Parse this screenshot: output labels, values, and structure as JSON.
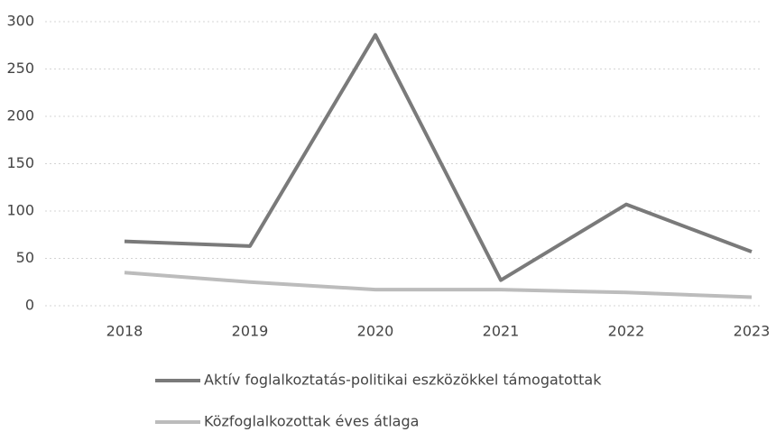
{
  "chart_data": {
    "type": "line",
    "categories": [
      "2018",
      "2019",
      "2020",
      "2021",
      "2022",
      "2023"
    ],
    "series": [
      {
        "name": "Aktív foglalkoztatás-politikai eszközökkel támogatottak",
        "color": "#7a7a7a",
        "values": [
          68,
          63,
          286,
          27,
          107,
          57
        ]
      },
      {
        "name": "Közfoglalkozottak éves átlaga",
        "color": "#bcbcbc",
        "values": [
          35,
          25,
          17,
          17,
          14,
          9
        ]
      }
    ],
    "ylim": [
      0,
      300
    ],
    "yticks": [
      0,
      50,
      100,
      150,
      200,
      250,
      300
    ],
    "grid": true,
    "legend": "bottom"
  }
}
